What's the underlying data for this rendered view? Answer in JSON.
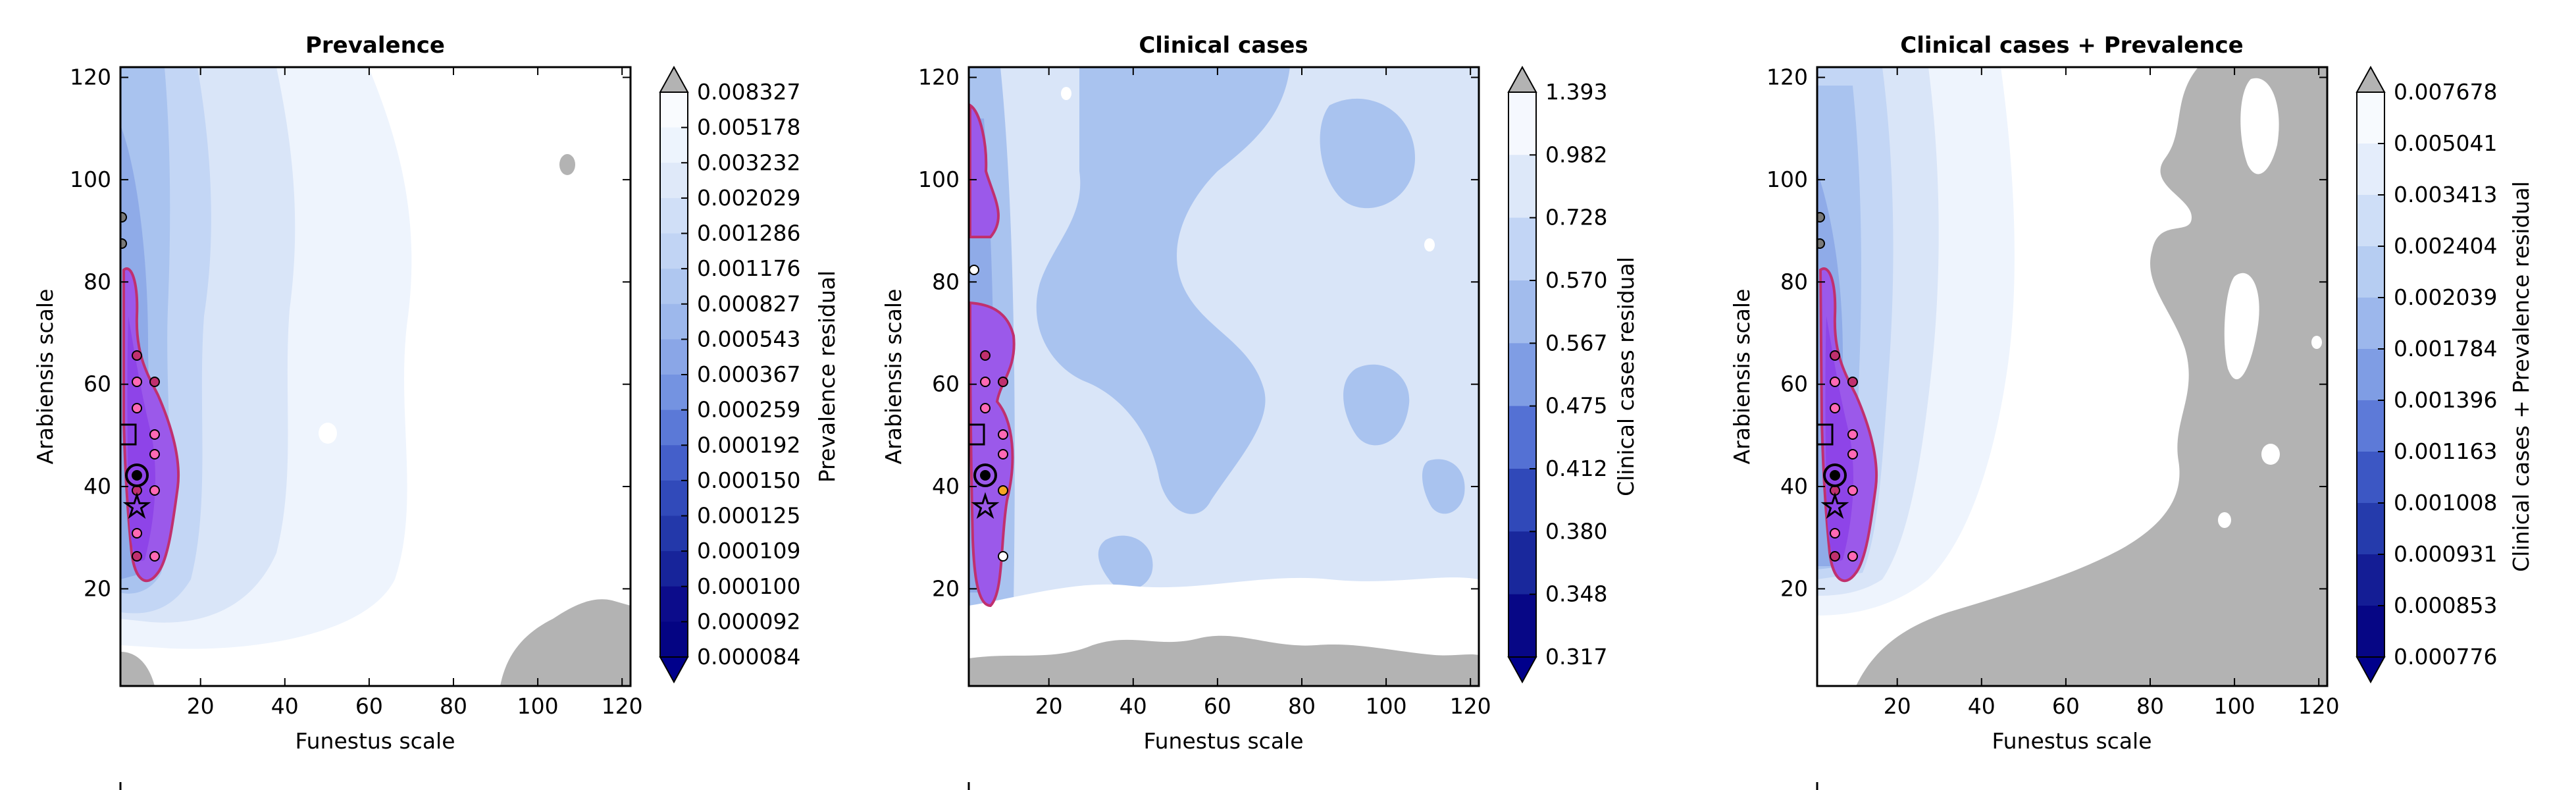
{
  "chart_data": [
    {
      "type": "heatmap",
      "title": "Prevalence",
      "xlabel": "Funestus scale",
      "ylabel": "Arabiensis scale",
      "xlim": [
        1,
        122
      ],
      "ylim": [
        1,
        122
      ],
      "xticks": [
        "20",
        "40",
        "60",
        "80",
        "100",
        "120"
      ],
      "yticks": [
        "20",
        "40",
        "60",
        "80",
        "100",
        "120"
      ],
      "colorbar_label": "Prevalence residual",
      "colorbar_levels": [
        "0.008327",
        "0.005178",
        "0.003232",
        "0.002029",
        "0.001286",
        "0.001176",
        "0.000827",
        "0.000543",
        "0.000367",
        "0.000259",
        "0.000192",
        "0.000150",
        "0.000125",
        "0.000109",
        "0.000100",
        "0.000092",
        "0.000084"
      ],
      "grey_region": "bottom-right corner",
      "markers": {
        "square": [
          2,
          50
        ],
        "circle": [
          5,
          42
        ],
        "star": [
          5,
          36
        ]
      }
    },
    {
      "type": "heatmap",
      "title": "Clinical cases",
      "xlabel": "Funestus scale",
      "ylabel": "Arabiensis scale",
      "xlim": [
        1,
        122
      ],
      "ylim": [
        1,
        122
      ],
      "xticks": [
        "20",
        "40",
        "60",
        "80",
        "100",
        "120"
      ],
      "yticks": [
        "20",
        "40",
        "60",
        "80",
        "100",
        "120"
      ],
      "colorbar_label": "Clinical cases residual",
      "colorbar_levels": [
        "1.393",
        "0.982",
        "0.728",
        "0.570",
        "0.567",
        "0.475",
        "0.412",
        "0.380",
        "0.348",
        "0.317"
      ],
      "grey_region": "bottom strip",
      "markers": {
        "square": [
          2,
          50
        ],
        "circle": [
          5,
          42
        ],
        "star": [
          5,
          36
        ]
      }
    },
    {
      "type": "heatmap",
      "title": "Clinical cases + Prevalence",
      "xlabel": "Funestus scale",
      "ylabel": "Arabiensis scale",
      "xlim": [
        1,
        122
      ],
      "ylim": [
        1,
        122
      ],
      "xticks": [
        "20",
        "40",
        "60",
        "80",
        "100",
        "120"
      ],
      "yticks": [
        "20",
        "40",
        "60",
        "80",
        "100",
        "120"
      ],
      "colorbar_label": "Clinical cases + Prevalence residual",
      "colorbar_levels": [
        "0.007678",
        "0.005041",
        "0.003413",
        "0.002404",
        "0.002039",
        "0.001784",
        "0.001396",
        "0.001163",
        "0.001008",
        "0.000931",
        "0.000853",
        "0.000776"
      ],
      "grey_region": "right half and bottom",
      "markers": {
        "square": [
          2,
          50
        ],
        "circle": [
          5,
          42
        ],
        "star": [
          5,
          36
        ]
      }
    }
  ],
  "colors": {
    "pale": "#eef4fd",
    "light": "#d9e5f8",
    "mid_light": "#c3d6f5",
    "mid": "#a9c3ef",
    "deep": "#6f8ee0",
    "purple_fill": "#9b59ea",
    "purple_edge": "#c0306e",
    "grey": "#b3b3b3",
    "cb_dark": "#0b0b8a"
  }
}
